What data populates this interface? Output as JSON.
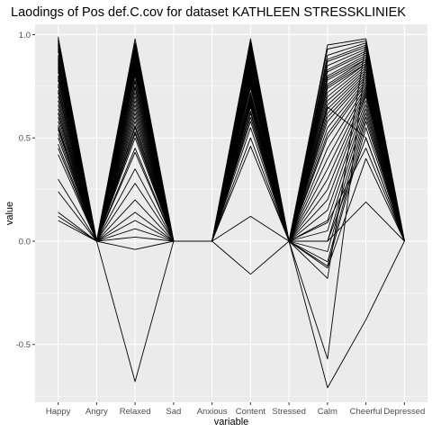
{
  "chart_data": {
    "type": "line",
    "title": "Laodings of Pos def.C.cov for dataset KATHLEEN STRESSKLINIEK",
    "xlabel": "variable",
    "ylabel": "value",
    "categories": [
      "Happy",
      "Angry",
      "Relaxed",
      "Sad",
      "Anxious",
      "Content",
      "Stressed",
      "Calm",
      "Cheerful",
      "Depressed"
    ],
    "ylim": [
      -0.78,
      1.05
    ],
    "yticks": [
      {
        "value": 1.0,
        "label": "1.0"
      },
      {
        "value": 0.5,
        "label": "0.5"
      },
      {
        "value": 0.0,
        "label": "0.0"
      },
      {
        "value": -0.5,
        "label": "-0.5"
      }
    ],
    "grid": true,
    "legend": "none",
    "background": "#ebebeb",
    "grid_color": "#ffffff",
    "line_color": "#000000",
    "series": [
      {
        "values": [
          0.99,
          0,
          0.98,
          0,
          0,
          0.98,
          0,
          0.95,
          0.98,
          0
        ]
      },
      {
        "values": [
          0.98,
          0,
          0.96,
          0,
          0,
          0.97,
          0,
          0.93,
          0.97,
          0
        ]
      },
      {
        "values": [
          0.97,
          0,
          0.95,
          0,
          0,
          0.96,
          0,
          0.9,
          0.96,
          0
        ]
      },
      {
        "values": [
          0.96,
          0,
          0.94,
          0,
          0,
          0.95,
          0,
          0.88,
          0.95,
          0
        ]
      },
      {
        "values": [
          0.95,
          0,
          0.93,
          0,
          0,
          0.94,
          0,
          0.87,
          0.94,
          0
        ]
      },
      {
        "values": [
          0.94,
          0,
          0.92,
          0,
          0,
          0.93,
          0,
          0.85,
          0.93,
          0
        ]
      },
      {
        "values": [
          0.93,
          0,
          0.91,
          0,
          0,
          0.92,
          0,
          0.83,
          0.92,
          0
        ]
      },
      {
        "values": [
          0.92,
          0,
          0.9,
          0,
          0,
          0.91,
          0,
          0.82,
          0.91,
          0
        ]
      },
      {
        "values": [
          0.9,
          0,
          0.89,
          0,
          0,
          0.9,
          0,
          0.8,
          0.9,
          0
        ]
      },
      {
        "values": [
          0.89,
          0,
          0.88,
          0,
          0,
          0.89,
          0,
          0.79,
          0.89,
          0
        ]
      },
      {
        "values": [
          0.88,
          0,
          0.87,
          0,
          0,
          0.88,
          0,
          0.78,
          0.88,
          0
        ]
      },
      {
        "values": [
          0.87,
          0,
          0.86,
          0,
          0,
          0.87,
          0,
          0.76,
          0.88,
          0
        ]
      },
      {
        "values": [
          0.86,
          0,
          0.85,
          0,
          0,
          0.86,
          0,
          0.75,
          0.87,
          0
        ]
      },
      {
        "values": [
          0.85,
          0,
          0.84,
          0,
          0,
          0.85,
          0,
          0.74,
          0.86,
          0
        ]
      },
      {
        "values": [
          0.84,
          0,
          0.83,
          0,
          0,
          0.84,
          0,
          0.72,
          0.86,
          0
        ]
      },
      {
        "values": [
          0.83,
          0,
          0.82,
          0,
          0,
          0.83,
          0,
          0.7,
          0.85,
          0
        ]
      },
      {
        "values": [
          0.82,
          0,
          0.81,
          0,
          0,
          0.82,
          0,
          0.68,
          0.84,
          0
        ]
      },
      {
        "values": [
          0.8,
          0,
          0.8,
          0,
          0,
          0.81,
          0,
          0.66,
          0.83,
          0
        ]
      },
      {
        "values": [
          0.79,
          0,
          0.78,
          0,
          0,
          0.8,
          0,
          0.64,
          0.82,
          0
        ]
      },
      {
        "values": [
          0.78,
          0,
          0.77,
          0,
          0,
          0.79,
          0,
          0.62,
          0.81,
          0
        ]
      },
      {
        "values": [
          0.76,
          0,
          0.75,
          0,
          0,
          0.78,
          0,
          0.6,
          0.8,
          0
        ]
      },
      {
        "values": [
          0.75,
          0,
          0.74,
          0,
          0,
          0.77,
          0,
          0.58,
          0.79,
          0
        ]
      },
      {
        "values": [
          0.73,
          0,
          0.72,
          0,
          0,
          0.76,
          0,
          0.55,
          0.78,
          0
        ]
      },
      {
        "values": [
          0.72,
          0,
          0.7,
          0,
          0,
          0.75,
          0,
          0.52,
          0.77,
          0
        ]
      },
      {
        "values": [
          0.7,
          0,
          0.68,
          0,
          0,
          0.74,
          0,
          0.5,
          0.76,
          0
        ]
      },
      {
        "values": [
          0.68,
          0,
          0.66,
          0,
          0,
          0.72,
          0,
          0.45,
          0.75,
          0
        ]
      },
      {
        "values": [
          0.66,
          0,
          0.64,
          0,
          0,
          0.71,
          0,
          0.4,
          0.74,
          0
        ]
      },
      {
        "values": [
          0.64,
          0,
          0.62,
          0,
          0,
          0.7,
          0,
          0.35,
          0.73,
          0
        ]
      },
      {
        "values": [
          0.62,
          0,
          0.6,
          0,
          0,
          0.69,
          0,
          0.3,
          0.72,
          0
        ]
      },
      {
        "values": [
          0.6,
          0,
          0.58,
          0,
          0,
          0.68,
          0,
          0.25,
          0.71,
          0
        ]
      },
      {
        "values": [
          0.58,
          0,
          0.56,
          0,
          0,
          0.67,
          0,
          0.2,
          0.7,
          0
        ]
      },
      {
        "values": [
          0.56,
          0,
          0.55,
          0,
          0,
          0.66,
          0,
          0.15,
          0.68,
          0
        ]
      },
      {
        "values": [
          0.54,
          0,
          0.53,
          0,
          0,
          0.65,
          0,
          0.1,
          0.66,
          0
        ]
      },
      {
        "values": [
          0.52,
          0,
          0.52,
          0,
          0,
          0.63,
          0,
          0.05,
          0.64,
          0
        ]
      },
      {
        "values": [
          0.5,
          0,
          0.5,
          0,
          0,
          0.62,
          0,
          0.0,
          0.62,
          0
        ]
      },
      {
        "values": [
          0.47,
          0,
          0.45,
          0,
          0,
          0.6,
          0,
          -0.05,
          0.6,
          0
        ]
      },
      {
        "values": [
          0.45,
          0,
          0.43,
          0,
          0,
          0.58,
          0,
          -0.1,
          0.58,
          0
        ]
      },
      {
        "values": [
          0.42,
          0,
          0.35,
          0,
          0,
          0.55,
          0,
          -0.12,
          0.55,
          0
        ]
      },
      {
        "values": [
          0.24,
          0,
          0.28,
          0,
          0,
          0.5,
          0,
          0.0,
          0.5,
          0
        ]
      },
      {
        "values": [
          0.14,
          0,
          0.2,
          0,
          0,
          0.46,
          0,
          0.09,
          0.45,
          0
        ]
      },
      {
        "values": [
          0.12,
          0,
          0.14,
          0,
          0,
          0.65,
          0,
          0.0,
          0.19,
          0
        ]
      },
      {
        "values": [
          0.1,
          0,
          0.1,
          0,
          0,
          0.6,
          0,
          -0.13,
          0.4,
          0
        ]
      },
      {
        "values": [
          0.62,
          0,
          0.06,
          0,
          0,
          0.12,
          0,
          -0.57,
          0.88,
          0
        ]
      },
      {
        "values": [
          0.55,
          0,
          0.02,
          0,
          0,
          -0.16,
          0,
          -0.18,
          0.96,
          0
        ]
      },
      {
        "values": [
          0.3,
          0,
          -0.04,
          0,
          0,
          0.8,
          0,
          -0.71,
          -0.38,
          0
        ]
      },
      {
        "values": [
          0.8,
          0,
          -0.68,
          0,
          0,
          0.9,
          0,
          0.65,
          0.5,
          0
        ]
      }
    ]
  }
}
